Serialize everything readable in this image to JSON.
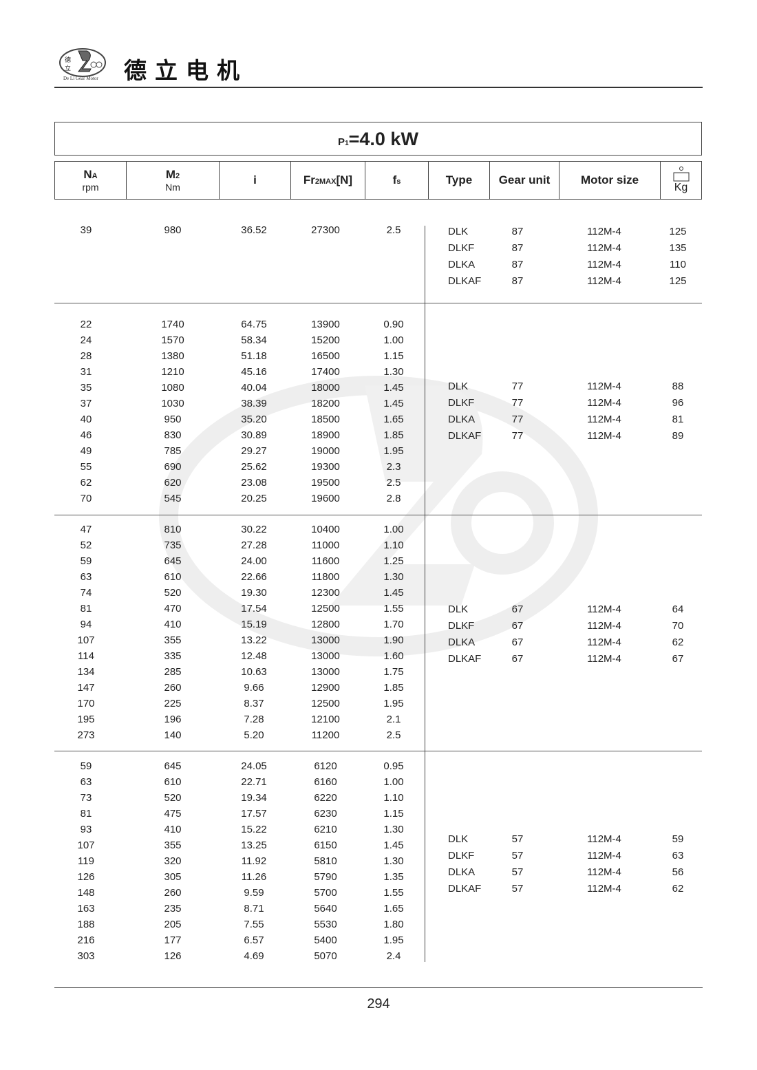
{
  "header": {
    "brand_cn": "德立电机",
    "logo_text": "De Li Gear Motor",
    "logo_cn": "德立"
  },
  "watermark": {
    "text": "De Li Gear Motor",
    "cn": "德立"
  },
  "title": {
    "prefix": "P",
    "sub": "1",
    "value": "=4.0 kW"
  },
  "columns": {
    "na": "N",
    "na_sub": "A",
    "na_unit": "rpm",
    "m2": "M",
    "m2_sub": "2",
    "m2_unit": "Nm",
    "i": "i",
    "fr": "Fr",
    "fr_sub": "2MAX",
    "fr_suffix": "[N]",
    "fs": "f",
    "fs_sub": "s",
    "type": "Type",
    "gear": "Gear unit",
    "motor": "Motor size",
    "kg": "Kg",
    "weight_icon": "weight-icon"
  },
  "groups": [
    {
      "rows": [
        [
          "39",
          "980",
          "36.52",
          "27300",
          "2.5"
        ]
      ],
      "units": [
        [
          "DLK",
          "87",
          "112M-4",
          "125"
        ],
        [
          "DLKF",
          "87",
          "112M-4",
          "135"
        ],
        [
          "DLKA",
          "87",
          "112M-4",
          "110"
        ],
        [
          "DLKAF",
          "87",
          "112M-4",
          "125"
        ]
      ]
    },
    {
      "rows": [
        [
          "22",
          "1740",
          "64.75",
          "13900",
          "0.90"
        ],
        [
          "24",
          "1570",
          "58.34",
          "15200",
          "1.00"
        ],
        [
          "28",
          "1380",
          "51.18",
          "16500",
          "1.15"
        ],
        [
          "31",
          "1210",
          "45.16",
          "17400",
          "1.30"
        ],
        [
          "35",
          "1080",
          "40.04",
          "18000",
          "1.45"
        ],
        [
          "37",
          "1030",
          "38.39",
          "18200",
          "1.45"
        ],
        [
          "40",
          "950",
          "35.20",
          "18500",
          "1.65"
        ],
        [
          "46",
          "830",
          "30.89",
          "18900",
          "1.85"
        ],
        [
          "49",
          "785",
          "29.27",
          "19000",
          "1.95"
        ],
        [
          "55",
          "690",
          "25.62",
          "19300",
          "2.3"
        ],
        [
          "62",
          "620",
          "23.08",
          "19500",
          "2.5"
        ],
        [
          "70",
          "545",
          "20.25",
          "19600",
          "2.8"
        ]
      ],
      "units": [
        [
          "DLK",
          "77",
          "112M-4",
          "88"
        ],
        [
          "DLKF",
          "77",
          "112M-4",
          "96"
        ],
        [
          "DLKA",
          "77",
          "112M-4",
          "81"
        ],
        [
          "DLKAF",
          "77",
          "112M-4",
          "89"
        ]
      ]
    },
    {
      "rows": [
        [
          "47",
          "810",
          "30.22",
          "10400",
          "1.00"
        ],
        [
          "52",
          "735",
          "27.28",
          "11000",
          "1.10"
        ],
        [
          "59",
          "645",
          "24.00",
          "11600",
          "1.25"
        ],
        [
          "63",
          "610",
          "22.66",
          "11800",
          "1.30"
        ],
        [
          "74",
          "520",
          "19.30",
          "12300",
          "1.45"
        ],
        [
          "81",
          "470",
          "17.54",
          "12500",
          "1.55"
        ],
        [
          "94",
          "410",
          "15.19",
          "12800",
          "1.70"
        ],
        [
          "107",
          "355",
          "13.22",
          "13000",
          "1.90"
        ],
        [
          "114",
          "335",
          "12.48",
          "13000",
          "1.60"
        ],
        [
          "134",
          "285",
          "10.63",
          "13000",
          "1.75"
        ],
        [
          "147",
          "260",
          "9.66",
          "12900",
          "1.85"
        ],
        [
          "170",
          "225",
          "8.37",
          "12500",
          "1.95"
        ],
        [
          "195",
          "196",
          "7.28",
          "12100",
          "2.1"
        ],
        [
          "273",
          "140",
          "5.20",
          "11200",
          "2.5"
        ]
      ],
      "units": [
        [
          "DLK",
          "67",
          "112M-4",
          "64"
        ],
        [
          "DLKF",
          "67",
          "112M-4",
          "70"
        ],
        [
          "DLKA",
          "67",
          "112M-4",
          "62"
        ],
        [
          "DLKAF",
          "67",
          "112M-4",
          "67"
        ]
      ]
    },
    {
      "rows": [
        [
          "59",
          "645",
          "24.05",
          "6120",
          "0.95"
        ],
        [
          "63",
          "610",
          "22.71",
          "6160",
          "1.00"
        ],
        [
          "73",
          "520",
          "19.34",
          "6220",
          "1.10"
        ],
        [
          "81",
          "475",
          "17.57",
          "6230",
          "1.15"
        ],
        [
          "93",
          "410",
          "15.22",
          "6210",
          "1.30"
        ],
        [
          "107",
          "355",
          "13.25",
          "6150",
          "1.45"
        ],
        [
          "119",
          "320",
          "11.92",
          "5810",
          "1.30"
        ],
        [
          "126",
          "305",
          "11.26",
          "5790",
          "1.35"
        ],
        [
          "148",
          "260",
          "9.59",
          "5700",
          "1.55"
        ],
        [
          "163",
          "235",
          "8.71",
          "5640",
          "1.65"
        ],
        [
          "188",
          "205",
          "7.55",
          "5530",
          "1.80"
        ],
        [
          "216",
          "177",
          "6.57",
          "5400",
          "1.95"
        ],
        [
          "303",
          "126",
          "4.69",
          "5070",
          "2.4"
        ]
      ],
      "units": [
        [
          "DLK",
          "57",
          "112M-4",
          "59"
        ],
        [
          "DLKF",
          "57",
          "112M-4",
          "63"
        ],
        [
          "DLKA",
          "57",
          "112M-4",
          "56"
        ],
        [
          "DLKAF",
          "57",
          "112M-4",
          "62"
        ]
      ]
    }
  ],
  "footer": {
    "page_number": "294"
  }
}
